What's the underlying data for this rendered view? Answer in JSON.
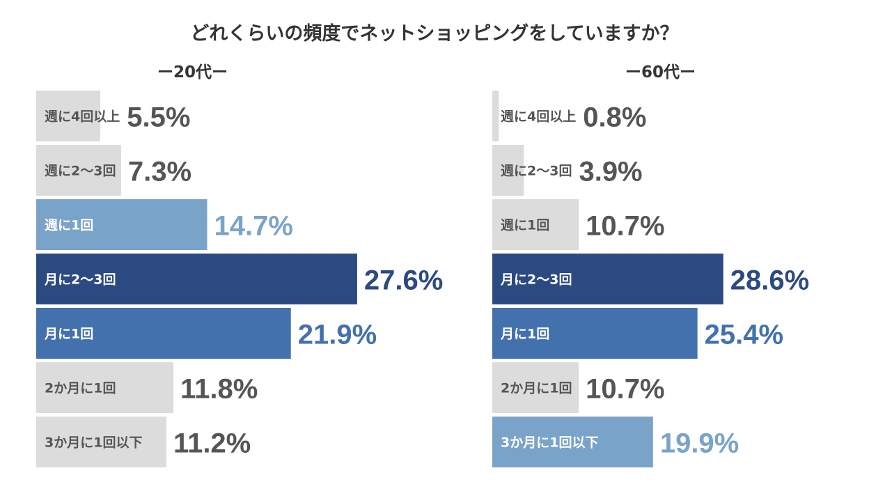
{
  "chart_data": [
    {
      "type": "bar",
      "orientation": "horizontal",
      "title": "どれくらいの頻度でネットショッピングをしていますか？",
      "subtitle": "ー20代ー",
      "categories": [
        "週に4回以上",
        "週に2〜3回",
        "週に1回",
        "月に2〜3回",
        "月に1回",
        "2か月に1回",
        "3か月に1回以下"
      ],
      "values": [
        5.5,
        7.3,
        14.7,
        27.6,
        21.9,
        11.8,
        11.2
      ],
      "value_labels": [
        "5.5%",
        "7.3%",
        "14.7%",
        "27.6%",
        "21.9%",
        "11.8%",
        "11.2%"
      ],
      "bar_colors": [
        "#dcdcdc",
        "#dcdcdc",
        "#7aa3c9",
        "#2c4a82",
        "#4371ad",
        "#dcdcdc",
        "#dcdcdc"
      ],
      "label_colors": [
        "#555555",
        "#555555",
        "#ffffff",
        "#ffffff",
        "#ffffff",
        "#555555",
        "#555555"
      ],
      "value_colors": [
        "#555555",
        "#555555",
        "#7aa3c9",
        "#2c4a82",
        "#4371ad",
        "#555555",
        "#555555"
      ],
      "grid": false,
      "legend": "none"
    },
    {
      "type": "bar",
      "orientation": "horizontal",
      "subtitle": "ー60代ー",
      "categories": [
        "週に4回以上",
        "週に2〜3回",
        "週に1回",
        "月に2〜3回",
        "月に1回",
        "2か月に1回",
        "3か月に1回以下"
      ],
      "values": [
        0.8,
        3.9,
        10.7,
        28.6,
        25.4,
        10.7,
        19.9
      ],
      "value_labels": [
        "0.8%",
        "3.9%",
        "10.7%",
        "28.6%",
        "25.4%",
        "10.7%",
        "19.9%"
      ],
      "bar_colors": [
        "#dcdcdc",
        "#dcdcdc",
        "#dcdcdc",
        "#2c4a82",
        "#4371ad",
        "#dcdcdc",
        "#7aa3c9"
      ],
      "label_colors": [
        "#555555",
        "#555555",
        "#555555",
        "#ffffff",
        "#ffffff",
        "#555555",
        "#ffffff"
      ],
      "value_colors": [
        "#555555",
        "#555555",
        "#555555",
        "#2c4a82",
        "#4371ad",
        "#555555",
        "#7aa3c9"
      ],
      "grid": false,
      "legend": "none"
    }
  ]
}
